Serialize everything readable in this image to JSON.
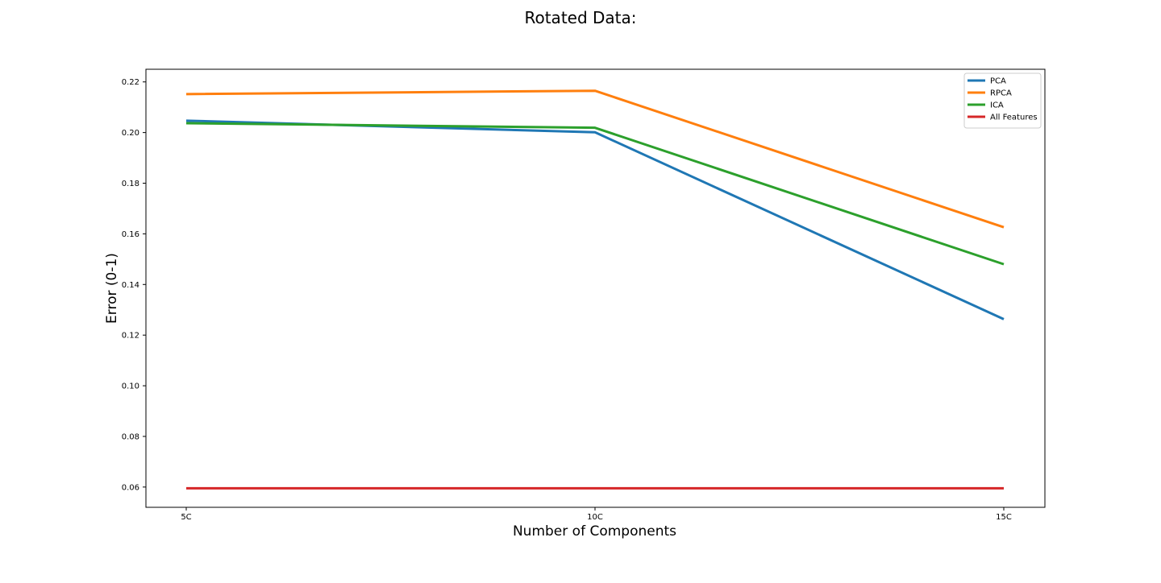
{
  "chart_data": {
    "type": "line",
    "title": "Rotated Data:",
    "xlabel": "Number of Components",
    "ylabel": "Error (0-1)",
    "categories": [
      "5C",
      "10C",
      "15C"
    ],
    "ylim": [
      0.052,
      0.225
    ],
    "yticks": [
      0.06,
      0.08,
      0.1,
      0.12,
      0.14,
      0.16,
      0.18,
      0.2,
      0.22
    ],
    "ytick_labels": [
      "0.06",
      "0.08",
      "0.10",
      "0.12",
      "0.14",
      "0.16",
      "0.18",
      "0.20",
      "0.22"
    ],
    "grid": false,
    "legend_position": "top-right",
    "series": [
      {
        "name": "PCA",
        "color": "#1f77b4",
        "values": [
          0.2047,
          0.2001,
          0.1263
        ]
      },
      {
        "name": "RPCA",
        "color": "#ff7f0e",
        "values": [
          0.2152,
          0.2165,
          0.1626
        ]
      },
      {
        "name": "ICA",
        "color": "#2ca02c",
        "values": [
          0.2037,
          0.2019,
          0.148
        ]
      },
      {
        "name": "All Features",
        "color": "#d62728",
        "values": [
          0.0595,
          0.0595,
          0.0595
        ]
      }
    ]
  }
}
